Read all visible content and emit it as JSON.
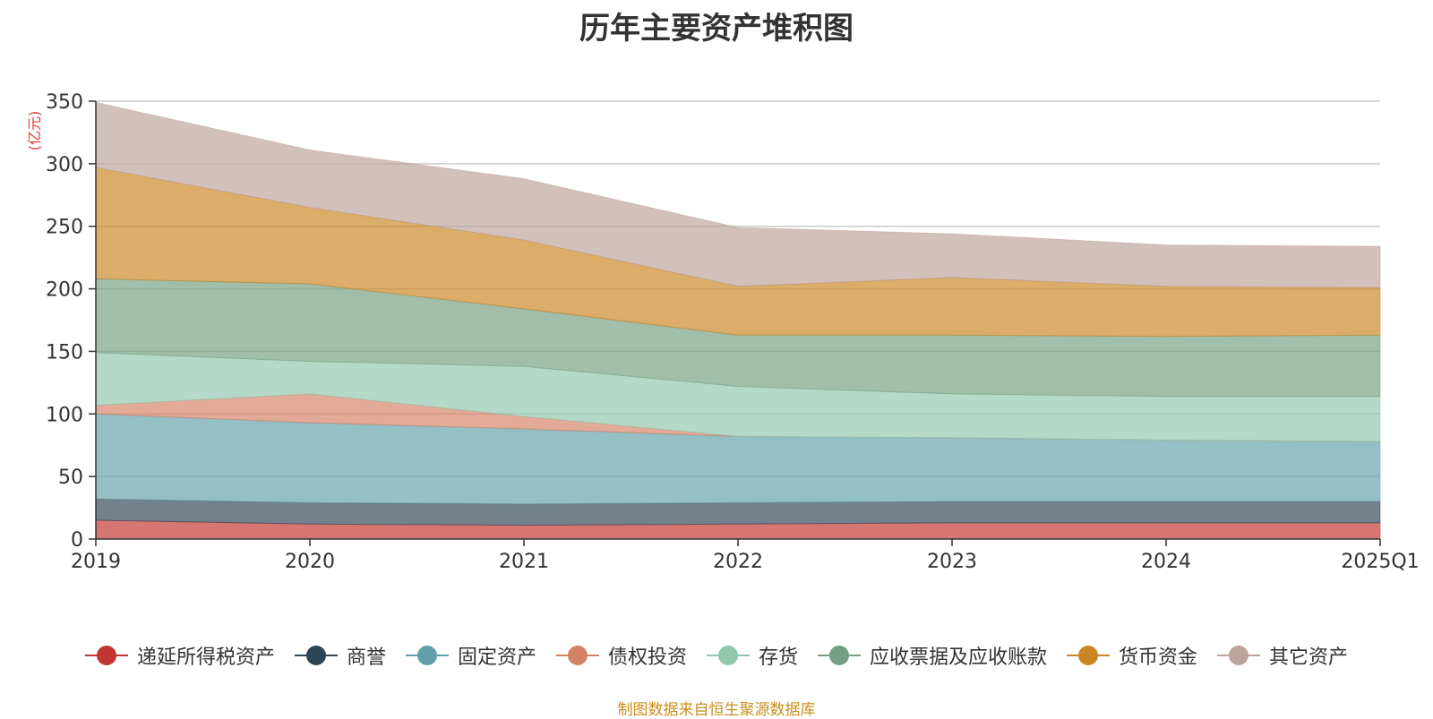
{
  "chart_data": {
    "type": "area",
    "stacked": true,
    "title": "历年主要资产堆积图",
    "ylabel": "(亿元)",
    "xlabel": "",
    "categories": [
      "2019",
      "2020",
      "2021",
      "2022",
      "2023",
      "2024",
      "2025Q1"
    ],
    "ylim": [
      0,
      350
    ],
    "yticks": [
      0,
      50,
      100,
      150,
      200,
      250,
      300,
      350
    ],
    "grid": true,
    "legend_position": "bottom",
    "series": [
      {
        "name": "递延所得税资产",
        "color": "#c23531",
        "values": [
          15,
          12,
          11,
          12,
          13,
          13,
          13
        ]
      },
      {
        "name": "商誉",
        "color": "#2f4554",
        "values": [
          17,
          17,
          17,
          17,
          17,
          17,
          17
        ]
      },
      {
        "name": "固定资产",
        "color": "#61a0a8",
        "values": [
          68,
          64,
          60,
          53,
          51,
          49,
          48
        ]
      },
      {
        "name": "债权投资",
        "color": "#d48265",
        "values": [
          7,
          23,
          10,
          0,
          0,
          0,
          0
        ]
      },
      {
        "name": "存货",
        "color": "#91c7ae",
        "values": [
          42,
          26,
          40,
          40,
          35,
          35,
          36
        ]
      },
      {
        "name": "应收票据及应收账款",
        "color": "#749f83",
        "values": [
          59,
          62,
          46,
          41,
          47,
          48,
          49
        ]
      },
      {
        "name": "货币资金",
        "color": "#ca8622",
        "values": [
          89,
          61,
          55,
          39,
          46,
          40,
          38
        ]
      },
      {
        "name": "其它资产",
        "color": "#bda29a",
        "values": [
          52,
          46,
          49,
          47,
          35,
          33,
          33
        ]
      }
    ]
  },
  "source_note": "制图数据来自恒生聚源数据库"
}
